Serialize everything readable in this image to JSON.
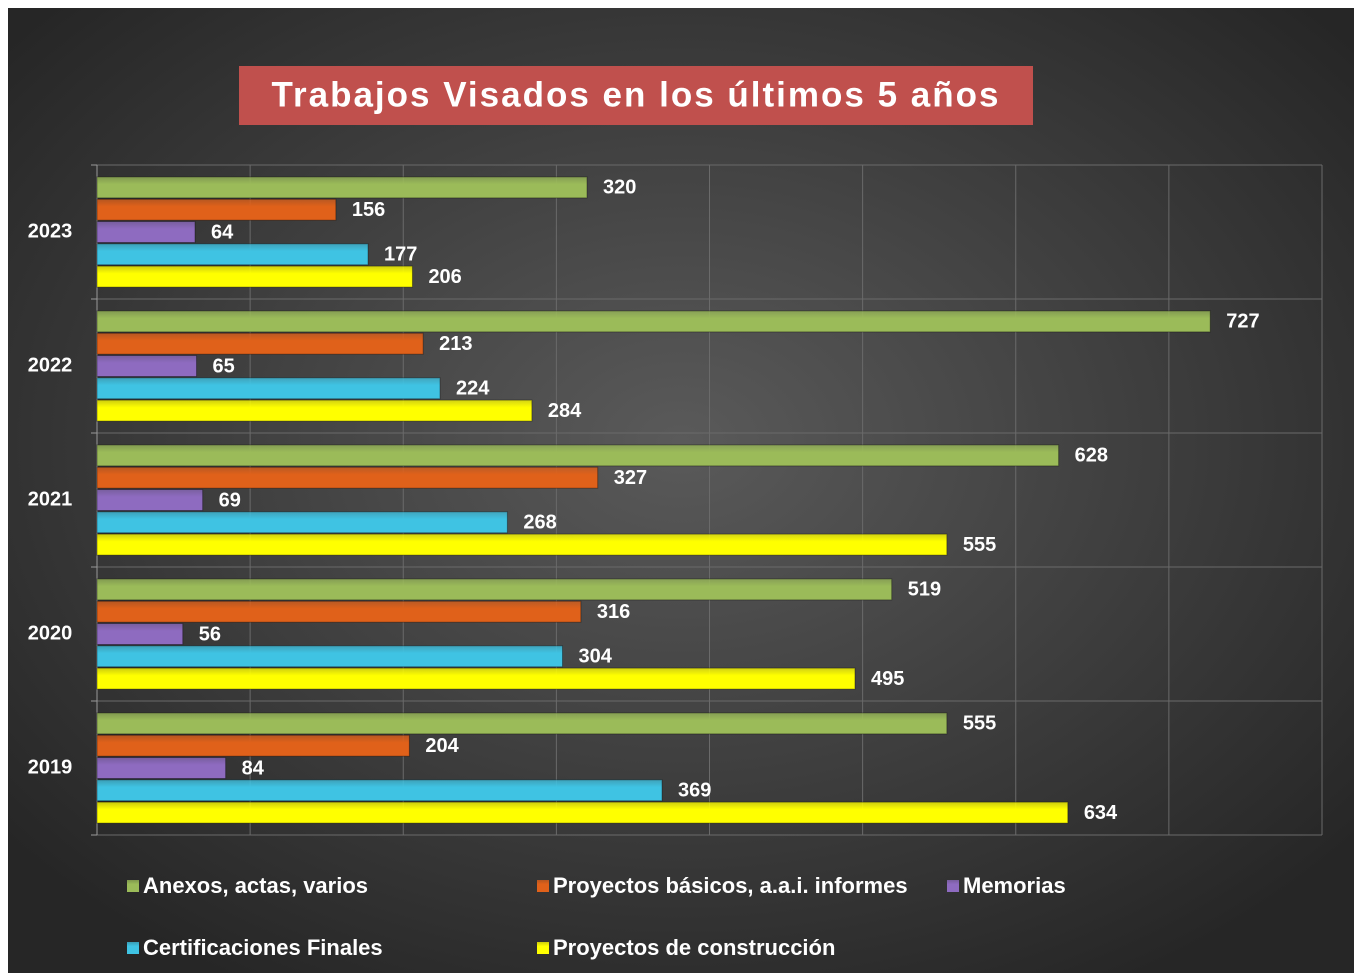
{
  "chart_data": {
    "type": "hbar",
    "title": "Trabajos Visados en los últimos 5 años",
    "categories": [
      "2023",
      "2022",
      "2021",
      "2020",
      "2019"
    ],
    "series": [
      {
        "name": "Anexos, actas, varios",
        "color": "#9bbb59",
        "values": [
          320,
          727,
          628,
          519,
          555
        ]
      },
      {
        "name": "Proyectos básicos, a.a.i. informes",
        "color": "#e0611a",
        "values": [
          156,
          213,
          327,
          316,
          204
        ]
      },
      {
        "name": "Memorias",
        "color": "#8e6bc0",
        "values": [
          64,
          65,
          69,
          56,
          84
        ]
      },
      {
        "name": "Certificaciones Finales",
        "color": "#3fc3e3",
        "values": [
          177,
          224,
          268,
          304,
          369
        ]
      },
      {
        "name": "Proyectos de construcción",
        "color": "#ffff00",
        "values": [
          206,
          284,
          555,
          495,
          634
        ]
      }
    ],
    "xlim": [
      0,
      800
    ],
    "xticks": [
      0,
      100,
      200,
      300,
      400,
      500,
      600,
      700,
      800
    ],
    "grid": true,
    "legend": "bottom"
  }
}
